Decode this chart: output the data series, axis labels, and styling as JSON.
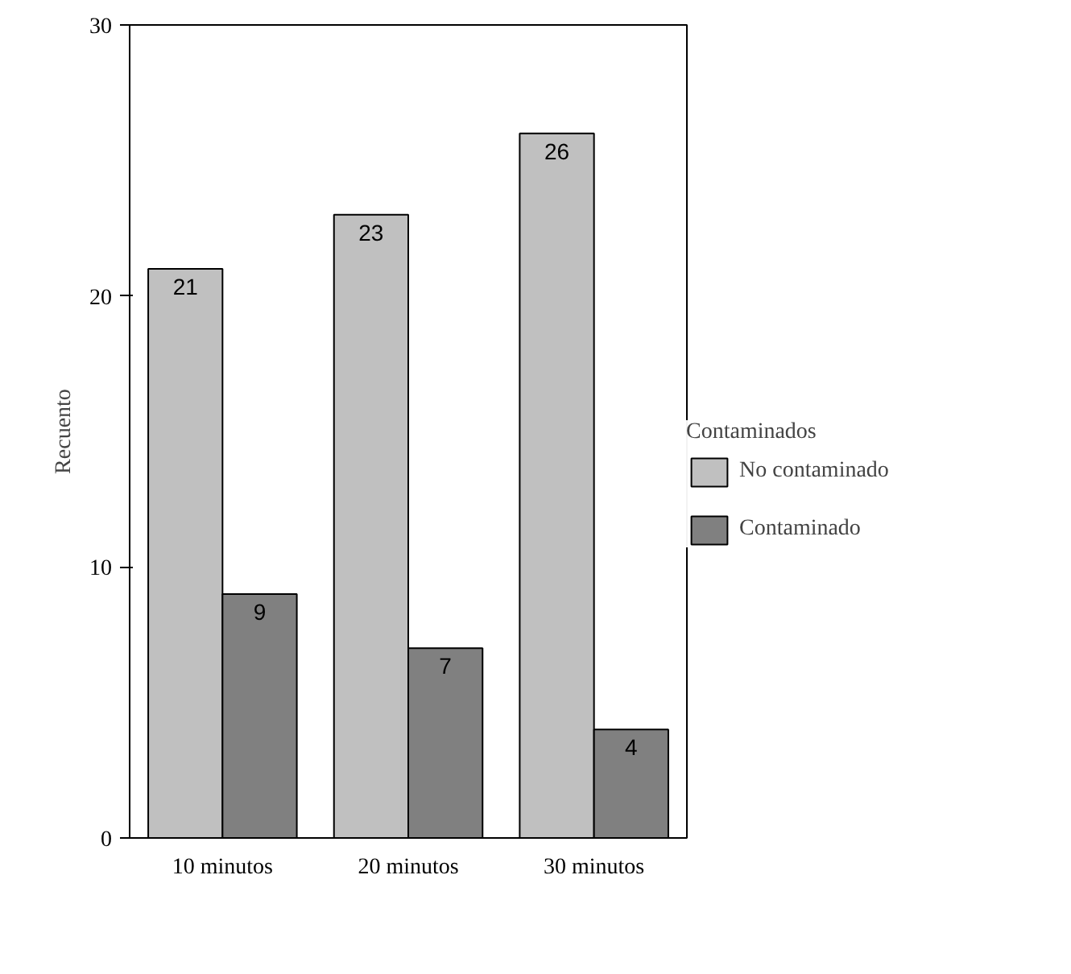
{
  "chart_data": {
    "type": "bar",
    "categories": [
      "10 minutos",
      "20 minutos",
      "30 minutos"
    ],
    "ylabel": "Recuento",
    "legend_title": "Contaminados",
    "ylim": [
      0,
      30
    ],
    "yticks": [
      0,
      10,
      20,
      30
    ],
    "grid": false,
    "legend": "right",
    "data_labels": true,
    "series": [
      {
        "name": "No contaminado",
        "color": "#c0c0c0",
        "values": [
          21,
          23,
          26
        ]
      },
      {
        "name": "Contaminado",
        "color": "#808080",
        "values": [
          9,
          7,
          4
        ]
      }
    ]
  }
}
